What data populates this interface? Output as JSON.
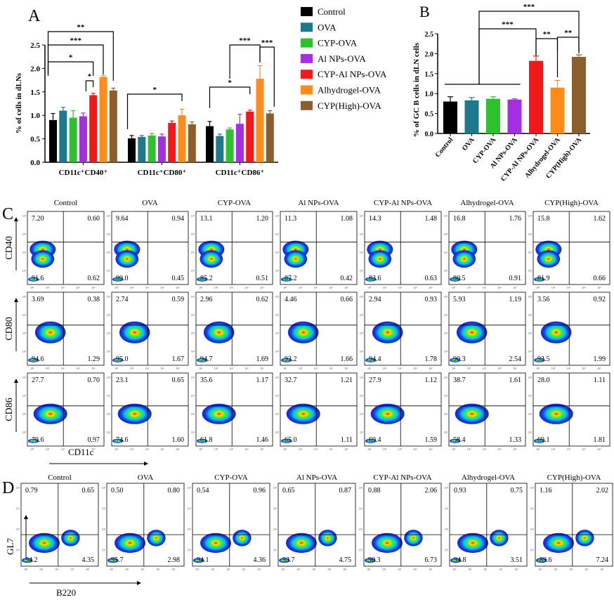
{
  "panels": {
    "A": "A",
    "B": "B",
    "C": "C",
    "D": "D"
  },
  "colors": {
    "Control": "#000000",
    "OVA": "#1d7a8c",
    "CYP-OVA": "#2fc02f",
    "Al NPs-OVA": "#a52fe0",
    "CYP-Al NPs-OVA": "#f01818",
    "Alhydrogel-OVA": "#ff8c1a",
    "CYP(High)-OVA": "#8b5e2b"
  },
  "legend": [
    "Control",
    "OVA",
    "CYP-OVA",
    "Al NPs-OVA",
    "CYP-Al NPs-OVA",
    "Alhydrogel-OVA",
    "CYP(High)-OVA"
  ],
  "chart_data": [
    {
      "type": "bar",
      "panel": "A",
      "ylabel": "% of cells in dLNs",
      "ylim": [
        0,
        2.5
      ],
      "yticks": [
        "0.0",
        "0.5",
        "1.0",
        "1.5",
        "2.0",
        "2.5"
      ],
      "categories": [
        "CD11c⁺CD40⁺",
        "CD11c⁺CD80⁺",
        "CD11c⁺CD86⁺"
      ],
      "series": [
        {
          "name": "Control",
          "values": [
            0.9,
            0.51,
            0.77
          ],
          "errors": [
            0.14,
            0.06,
            0.1
          ]
        },
        {
          "name": "OVA",
          "values": [
            1.1,
            0.54,
            0.56
          ],
          "errors": [
            0.07,
            0.03,
            0.04
          ]
        },
        {
          "name": "CYP-OVA",
          "values": [
            0.95,
            0.57,
            0.7
          ],
          "errors": [
            0.15,
            0.04,
            0.03
          ]
        },
        {
          "name": "Al NPs-OVA",
          "values": [
            0.98,
            0.55,
            0.82
          ],
          "errors": [
            0.07,
            0.05,
            0.2
          ]
        },
        {
          "name": "CYP-Al NPs-OVA",
          "values": [
            1.43,
            0.84,
            1.08
          ],
          "errors": [
            0.04,
            0.04,
            0.03
          ]
        },
        {
          "name": "Alhydrogel-OVA",
          "values": [
            1.82,
            1.0,
            1.78
          ],
          "errors": [
            0.03,
            0.13,
            0.28
          ]
        },
        {
          "name": "CYP(High)-OVA",
          "values": [
            1.53,
            0.81,
            1.04
          ],
          "errors": [
            0.05,
            0.05,
            0.06
          ]
        }
      ],
      "significance": [
        "**",
        "***",
        "*",
        "*",
        "*",
        "*",
        "***",
        "***"
      ]
    },
    {
      "type": "bar",
      "panel": "B",
      "ylabel": "% of GC B cells in dLN cells",
      "ylim": [
        0,
        2.5
      ],
      "yticks": [
        "0.0",
        "0.5",
        "1.0",
        "1.5",
        "2.0",
        "2.5"
      ],
      "categories": [
        "Control",
        "OVA",
        "CYP-OVA",
        "Al NPs-OVA",
        "CYP-Al NPs-OVA",
        "Alhydrogel-OVA",
        "CYP(High)-OVA"
      ],
      "values": [
        0.8,
        0.83,
        0.87,
        0.85,
        1.82,
        1.15,
        1.92
      ],
      "errors": [
        0.12,
        0.07,
        0.05,
        0.02,
        0.12,
        0.18,
        0.05
      ],
      "significance": [
        "***",
        "***",
        "**",
        "**"
      ]
    }
  ],
  "flow_C": {
    "groups": [
      "Control",
      "OVA",
      "CYP-OVA",
      "Al NPs-OVA",
      "CYP-Al NPs-OVA",
      "Alhydrogel-OVA",
      "CYP(High)-OVA"
    ],
    "x_axis_label": "CD11c",
    "rows": [
      {
        "marker": "CD40",
        "UL": [
          "7.20",
          "9.64",
          "13.1",
          "11.3",
          "14.3",
          "16.8",
          "15.8"
        ],
        "UR": [
          "0.60",
          "0.94",
          "1.20",
          "1.08",
          "1.48",
          "1.76",
          "1.62"
        ],
        "LL": [
          "91.6",
          "89.0",
          "85.2",
          "87.2",
          "83.6",
          "80.5",
          "81.9"
        ],
        "LR": [
          "0.62",
          "0.45",
          "0.51",
          "0.42",
          "0.63",
          "0.91",
          "0.66"
        ]
      },
      {
        "marker": "CD80",
        "UL": [
          "3.69",
          "2.74",
          "2.96",
          "4.46",
          "2.94",
          "5.93",
          "3.56"
        ],
        "UR": [
          "0.38",
          "0.59",
          "0.62",
          "0.66",
          "0.93",
          "1.19",
          "0.92"
        ],
        "LL": [
          "94.6",
          "95.0",
          "94.7",
          "93.2",
          "94.4",
          "90.3",
          "93.5"
        ],
        "LR": [
          "1.29",
          "1.67",
          "1.69",
          "1.66",
          "1.78",
          "2.54",
          "1.99"
        ]
      },
      {
        "marker": "CD86",
        "UL": [
          "27.7",
          "23.1",
          "35.6",
          "32.7",
          "27.9",
          "38.7",
          "28.0"
        ],
        "UR": [
          "0.70",
          "0.65",
          "1.17",
          "1.21",
          "1.12",
          "1.61",
          "1.11"
        ],
        "LL": [
          "70.6",
          "74.6",
          "61.8",
          "65.0",
          "69.4",
          "58.4",
          "69.1"
        ],
        "LR": [
          "0.97",
          "1.60",
          "1.46",
          "1.11",
          "1.59",
          "1.33",
          "1.81"
        ]
      }
    ]
  },
  "flow_D": {
    "groups": [
      "Control",
      "OVA",
      "CYP-OVA",
      "Al NPs-OVA",
      "CYP-Al NPs-OVA",
      "Alhydrogel-OVA",
      "CYP(High)-OVA"
    ],
    "x_axis_label": "B220",
    "y_axis_label": "GL7",
    "UL": [
      "0.79",
      "0.50",
      "0.54",
      "0.65",
      "0.88",
      "0.93",
      "1.16"
    ],
    "UR": [
      "0.65",
      "0.80",
      "0.96",
      "0.87",
      "2.06",
      "0.75",
      "2.02"
    ],
    "LL": [
      "94.2",
      "95.7",
      "94.1",
      "93.7",
      "90.3",
      "94.8",
      "89.6"
    ],
    "LR": [
      "4.35",
      "2.98",
      "4.36",
      "4.75",
      "6.73",
      "3.51",
      "7.24"
    ]
  }
}
